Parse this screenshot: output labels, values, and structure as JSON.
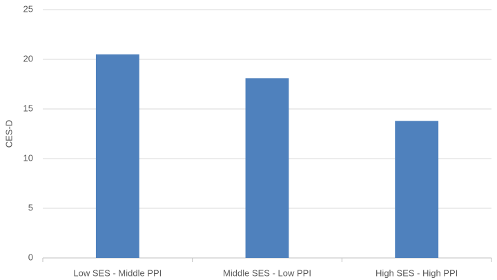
{
  "chart_data": {
    "type": "bar",
    "y_label": "CES-D",
    "categories": [
      "Low SES - Middle PPI",
      "Middle SES - Low PPI",
      "High SES - High PPI"
    ],
    "values": [
      20.5,
      18.1,
      13.8
    ],
    "color": "#4f81bd",
    "ylim": [
      0,
      25
    ],
    "yticks": [
      0,
      5,
      10,
      15,
      20,
      25
    ],
    "grid": true
  }
}
